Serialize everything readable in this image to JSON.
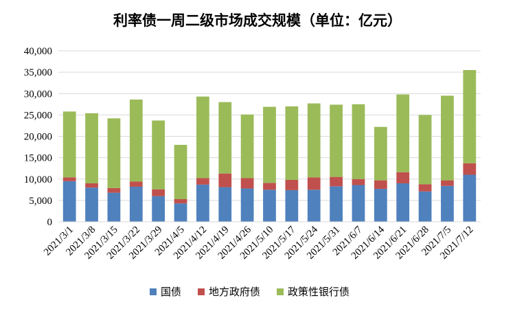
{
  "chart_data": {
    "type": "bar",
    "stacked": true,
    "title": "利率债一周二级市场成交规模（单位：亿元）",
    "xlabel": "",
    "ylabel": "",
    "ylim": [
      0,
      40000
    ],
    "yticks": [
      0,
      5000,
      10000,
      15000,
      20000,
      25000,
      30000,
      35000,
      40000
    ],
    "ytick_labels": [
      "0",
      "5,000",
      "10,000",
      "15,000",
      "20,000",
      "25,000",
      "30,000",
      "35,000",
      "40,000"
    ],
    "grid": true,
    "legend_position": "bottom",
    "categories": [
      "2021/3/1",
      "2021/3/8",
      "2021/3/15",
      "2021/3/22",
      "2021/3/29",
      "2021/4/5",
      "2021/4/12",
      "2021/4/19",
      "2021/4/26",
      "2021/5/10",
      "2021/5/17",
      "2021/5/24",
      "2021/5/31",
      "2021/6/7",
      "2021/6/14",
      "2021/6/21",
      "2021/6/28",
      "2021/7/5",
      "2021/7/12"
    ],
    "series": [
      {
        "name": "国债",
        "color": "#4f81bd",
        "values": [
          9500,
          8000,
          6800,
          8200,
          6000,
          4300,
          8700,
          8100,
          7800,
          7500,
          7400,
          7500,
          8300,
          8600,
          7700,
          9000,
          7100,
          8400,
          11000
        ]
      },
      {
        "name": "地方政府债",
        "color": "#c0504d",
        "values": [
          900,
          1000,
          1100,
          1200,
          1600,
          1000,
          1500,
          3200,
          2400,
          1600,
          2400,
          2900,
          2200,
          1400,
          2000,
          2600,
          1700,
          1300,
          2700
        ]
      },
      {
        "name": "政策性银行债",
        "color": "#9bbb59",
        "values": [
          15400,
          16400,
          16300,
          19200,
          16100,
          12700,
          19100,
          16700,
          14900,
          17800,
          17200,
          17300,
          16900,
          17500,
          12500,
          18200,
          16200,
          19800,
          21800
        ]
      }
    ]
  }
}
